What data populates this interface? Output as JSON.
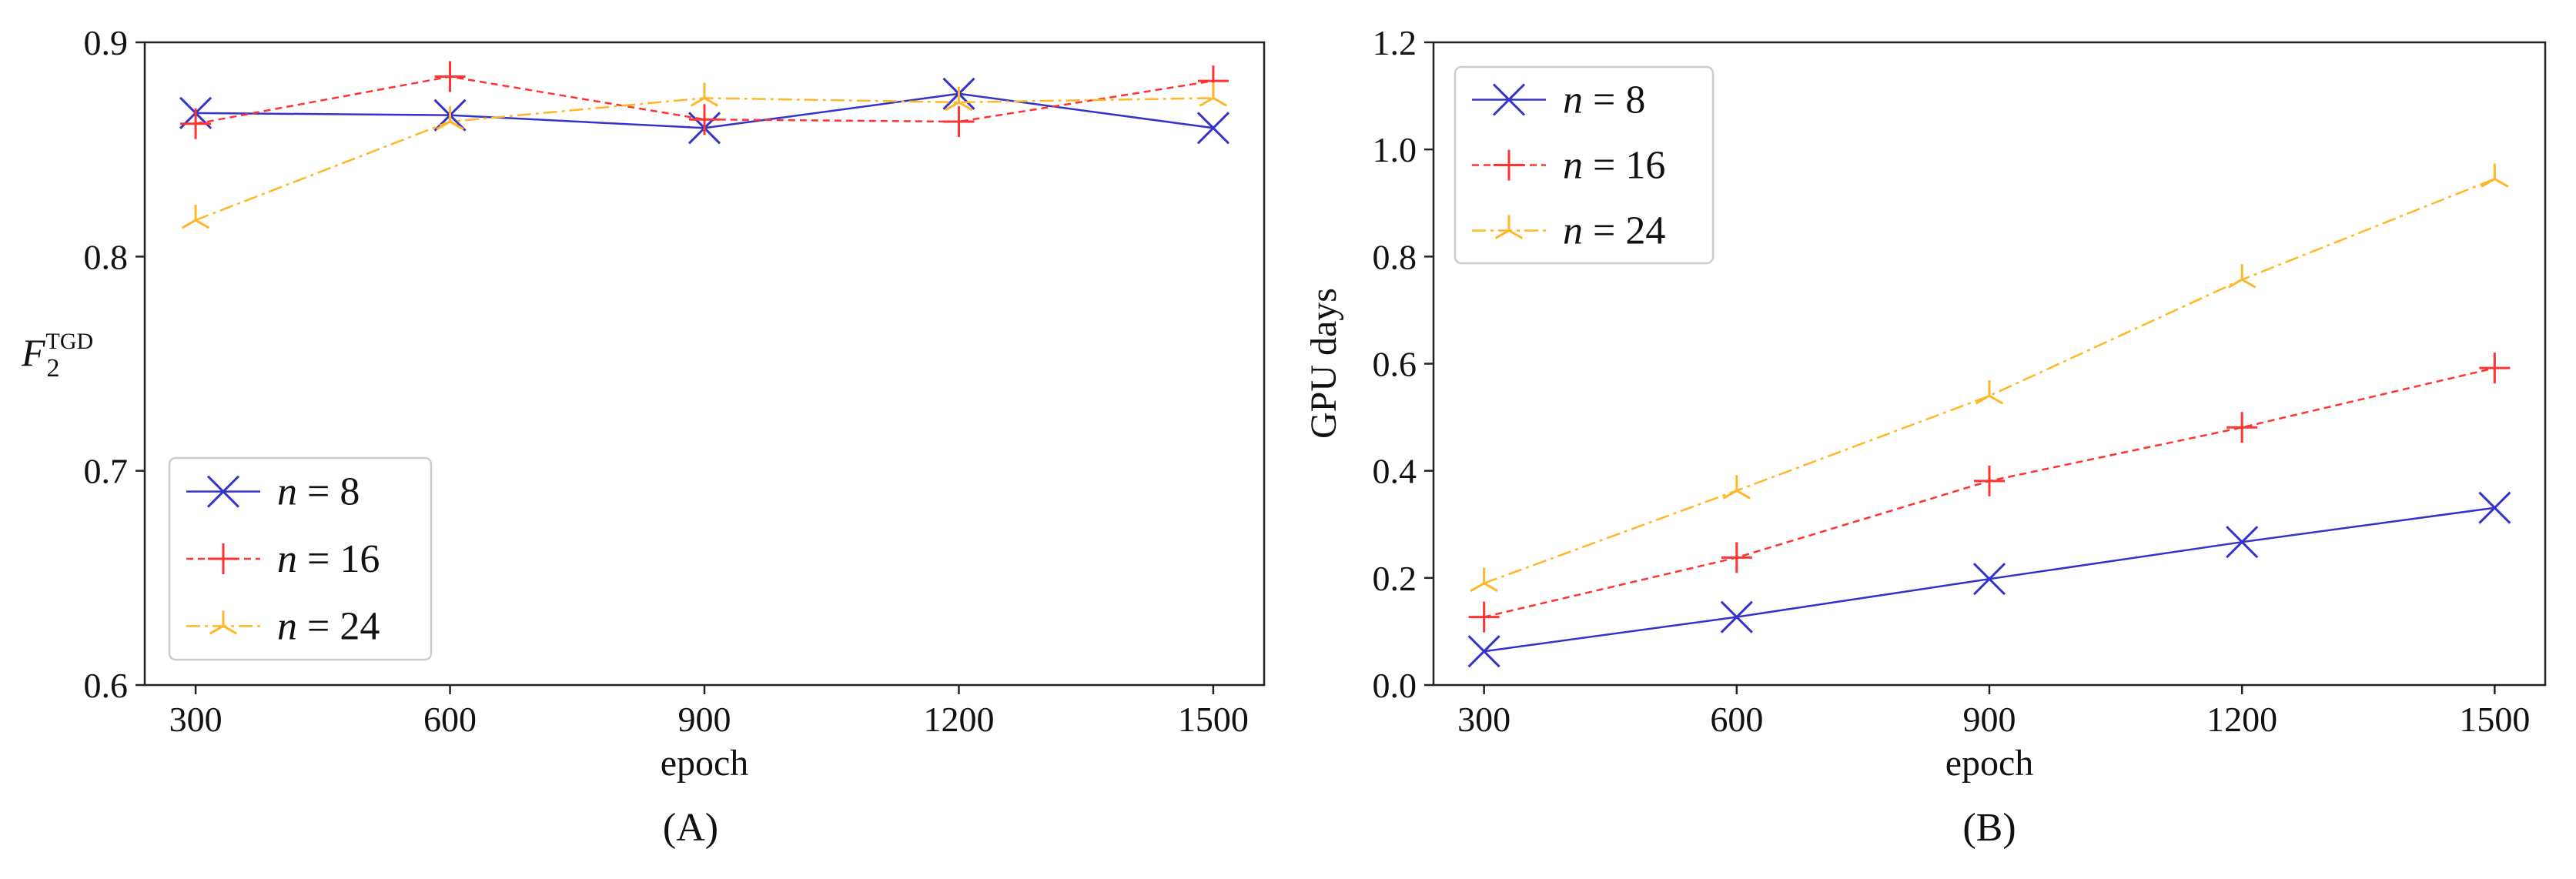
{
  "chart_data": [
    {
      "id": "A",
      "type": "line",
      "caption": "(A)",
      "xlabel": "epoch",
      "ylabel_main": "F",
      "ylabel_sub": "2",
      "ylabel_sup": "TGD",
      "x": [
        300,
        600,
        900,
        1200,
        1500
      ],
      "xlim": [
        240,
        1560
      ],
      "ylim": [
        0.6,
        0.9
      ],
      "xticks": [
        300,
        600,
        900,
        1200,
        1500
      ],
      "yticks": [
        0.6,
        0.7,
        0.8,
        0.9
      ],
      "ytick_labels": [
        "0.6",
        "0.7",
        "0.8",
        "0.9"
      ],
      "grid": false,
      "legend_position": "lower-left",
      "series": [
        {
          "name": "n = 8",
          "legend_var": "n",
          "legend_rest": " = 8",
          "values": [
            0.867,
            0.866,
            0.86,
            0.876,
            0.86
          ]
        },
        {
          "name": "n = 16",
          "legend_var": "n",
          "legend_rest": " = 16",
          "values": [
            0.862,
            0.884,
            0.864,
            0.863,
            0.882
          ]
        },
        {
          "name": "n = 24",
          "legend_var": "n",
          "legend_rest": " = 24",
          "values": [
            0.817,
            0.863,
            0.874,
            0.872,
            0.874
          ]
        }
      ]
    },
    {
      "id": "B",
      "type": "line",
      "caption": "(B)",
      "xlabel": "epoch",
      "ylabel": "GPU days",
      "x": [
        300,
        600,
        900,
        1200,
        1500
      ],
      "xlim": [
        240,
        1560
      ],
      "ylim": [
        0.0,
        1.2
      ],
      "xticks": [
        300,
        600,
        900,
        1200,
        1500
      ],
      "yticks": [
        0.0,
        0.2,
        0.4,
        0.6,
        0.8,
        1.0,
        1.2
      ],
      "ytick_labels": [
        "0.0",
        "0.2",
        "0.4",
        "0.6",
        "0.8",
        "1.0",
        "1.2"
      ],
      "grid": false,
      "legend_position": "top-left",
      "series": [
        {
          "name": "n = 8",
          "legend_var": "n",
          "legend_rest": " = 8",
          "values": [
            0.063,
            0.127,
            0.198,
            0.267,
            0.331
          ]
        },
        {
          "name": "n = 16",
          "legend_var": "n",
          "legend_rest": " = 16",
          "values": [
            0.127,
            0.238,
            0.381,
            0.481,
            0.592
          ]
        },
        {
          "name": "n = 24",
          "legend_var": "n",
          "legend_rest": " = 24",
          "values": [
            0.19,
            0.363,
            0.54,
            0.757,
            0.945
          ]
        }
      ]
    }
  ],
  "styles": {
    "series_colors": [
      "#3333cc",
      "#ff3333",
      "#ffb727"
    ],
    "series_markers": [
      "x",
      "+",
      "tri"
    ],
    "series_dashes": [
      "",
      "9,6",
      "18,6,4,6"
    ],
    "axis_color": "#222222",
    "legend_border_color": "#cccccc"
  }
}
